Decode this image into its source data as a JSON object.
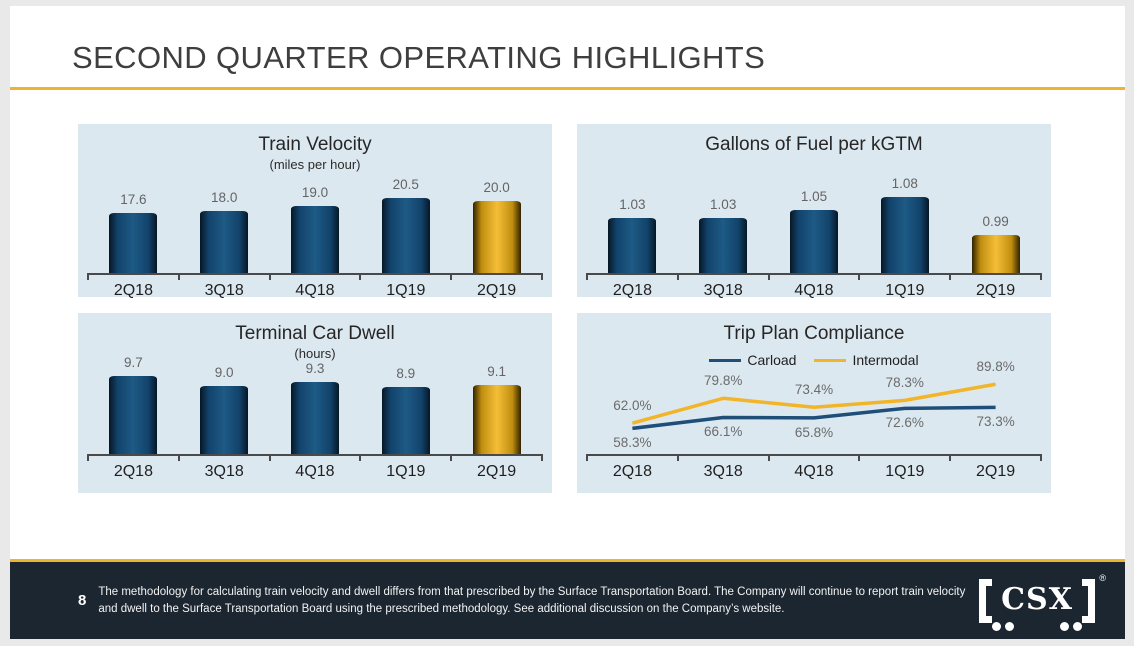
{
  "slide": {
    "title": "SECOND QUARTER OPERATING HIGHLIGHTS"
  },
  "colors": {
    "accent_gold": "#EBB52E",
    "panel_bg": "#DCE8F0",
    "footer_bg": "#1B2631",
    "bar_navy": "#12436B",
    "bar_gold": "#E8AF1E",
    "carload_line": "#1F4E79",
    "intermodal_line": "#F2B52A"
  },
  "chart_data": [
    {
      "type": "bar",
      "title": "Train Velocity",
      "subtitle": "(miles per hour)",
      "categories": [
        "2Q18",
        "3Q18",
        "4Q18",
        "1Q19",
        "2Q19"
      ],
      "values": [
        17.6,
        18.0,
        19.0,
        20.5,
        20.0
      ],
      "value_labels": [
        "17.6",
        "18.0",
        "19.0",
        "20.5",
        "20.0"
      ],
      "ylim": [
        6,
        24
      ],
      "grid": false,
      "highlight_index": 4,
      "bar_area_top": 56
    },
    {
      "type": "bar",
      "title": "Gallons of Fuel per kGTM",
      "subtitle": "",
      "categories": [
        "2Q18",
        "3Q18",
        "4Q18",
        "1Q19",
        "2Q19"
      ],
      "values": [
        1.03,
        1.03,
        1.05,
        1.08,
        0.99
      ],
      "value_labels": [
        "1.03",
        "1.03",
        "1.05",
        "1.08",
        "0.99"
      ],
      "ylim": [
        0.9,
        1.12
      ],
      "grid": false,
      "highlight_index": 4,
      "bar_area_top": 56
    },
    {
      "type": "bar",
      "title": "Terminal Car Dwell",
      "subtitle": "(hours)",
      "categories": [
        "2Q18",
        "3Q18",
        "4Q18",
        "1Q19",
        "2Q19"
      ],
      "values": [
        9.7,
        9.0,
        9.3,
        8.9,
        9.1
      ],
      "value_labels": [
        "9.7",
        "9.0",
        "9.3",
        "8.9",
        "9.1"
      ],
      "ylim": [
        4,
        12
      ],
      "grid": false,
      "highlight_index": 4,
      "bar_area_top": 32
    },
    {
      "type": "line",
      "title": "Trip Plan Compliance",
      "categories": [
        "2Q18",
        "3Q18",
        "4Q18",
        "1Q19",
        "2Q19"
      ],
      "legend_position": "top",
      "ylim": [
        50,
        100
      ],
      "grid": false,
      "series": [
        {
          "name": "Carload",
          "color": "#1F4E79",
          "values": [
            58.3,
            66.1,
            65.8,
            72.6,
            73.3
          ],
          "value_labels": [
            "58.3%",
            "66.1%",
            "65.8%",
            "72.6%",
            "73.3%"
          ],
          "label_position": "below"
        },
        {
          "name": "Intermodal",
          "color": "#F2B52A",
          "values": [
            62.0,
            79.8,
            73.4,
            78.3,
            89.8
          ],
          "value_labels": [
            "62.0%",
            "79.8%",
            "73.4%",
            "78.3%",
            "89.8%"
          ],
          "label_position": "above"
        }
      ]
    }
  ],
  "footer": {
    "page_number": "8",
    "note": "The methodology for calculating train velocity and dwell differs from that prescribed by the Surface Transportation Board. The Company will continue to report train velocity and dwell to the Surface Transportation Board using the prescribed methodology. See additional discussion on the Company’s website.",
    "logo_text": "CSX",
    "registered_mark": "®"
  }
}
